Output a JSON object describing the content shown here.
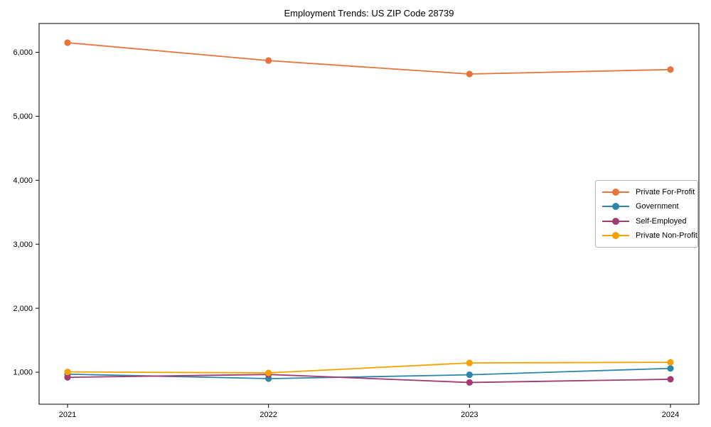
{
  "chart_data": {
    "type": "line",
    "title": "Employment Trends: US ZIP Code 28739",
    "xlabel": "",
    "ylabel": "",
    "x": [
      2021,
      2022,
      2023,
      2024
    ],
    "x_labels": [
      "2021",
      "2022",
      "2023",
      "2024"
    ],
    "ylim": [
      500,
      6450
    ],
    "yticks": [
      1000,
      2000,
      3000,
      4000,
      5000,
      6000
    ],
    "ytick_labels": [
      "1,000",
      "2,000",
      "3,000",
      "4,000",
      "5,000",
      "6,000"
    ],
    "grid": false,
    "legend_position": "center-right",
    "series": [
      {
        "name": "Private For-Profit",
        "color": "#E8743B",
        "values": [
          6150,
          5870,
          5660,
          5730
        ]
      },
      {
        "name": "Government",
        "color": "#2E86AB",
        "values": [
          970,
          900,
          960,
          1060
        ]
      },
      {
        "name": "Self-Employed",
        "color": "#A23B72",
        "values": [
          920,
          965,
          840,
          890
        ]
      },
      {
        "name": "Private Non-Profit",
        "color": "#F5A201",
        "values": [
          1005,
          990,
          1145,
          1155
        ]
      }
    ]
  }
}
